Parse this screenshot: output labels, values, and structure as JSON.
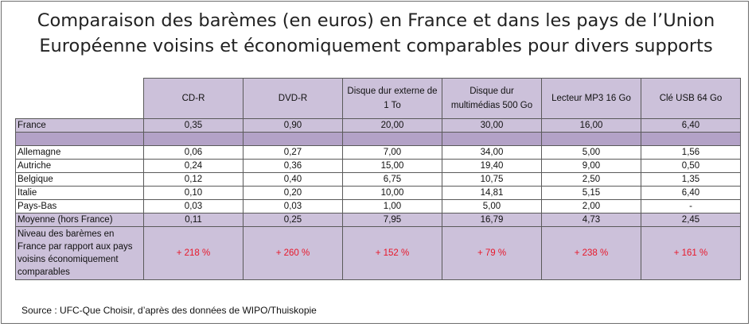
{
  "title": {
    "line1": "Comparaison des barèmes (en euros) en France et dans les pays de l’Union",
    "line2": "Européenne voisins et économiquement comparables pour divers supports"
  },
  "table": {
    "headers": [
      "CD-R",
      "DVD-R",
      "Disque dur externe de 1 To",
      "Disque dur multimédias 500 Go",
      "Lecteur MP3 16 Go",
      "Clé USB 64 Go"
    ],
    "france": {
      "label": "France",
      "values": [
        "0,35",
        "0,90",
        "20,00",
        "30,00",
        "16,00",
        "6,40"
      ]
    },
    "rows": [
      {
        "label": "Allemagne",
        "values": [
          "0,06",
          "0,27",
          "7,00",
          "34,00",
          "5,00",
          "1,56"
        ]
      },
      {
        "label": "Autriche",
        "values": [
          "0,24",
          "0,36",
          "15,00",
          "19,40",
          "9,00",
          "0,50"
        ]
      },
      {
        "label": "Belgique",
        "values": [
          "0,12",
          "0,40",
          "6,75",
          "10,75",
          "2,50",
          "1,35"
        ]
      },
      {
        "label": "Italie",
        "values": [
          "0,10",
          "0,20",
          "10,00",
          "14,81",
          "5,15",
          "6,40"
        ]
      },
      {
        "label": "Pays-Bas",
        "values": [
          "0,03",
          "0,03",
          "1,00",
          "5,00",
          "2,00",
          "-"
        ]
      }
    ],
    "average": {
      "label": "Moyenne (hors France)",
      "values": [
        "0,11",
        "0,25",
        "7,95",
        "16,79",
        "4,73",
        "2,45"
      ]
    },
    "ratio": {
      "label": "Niveau des barèmes en France par rapport aux pays voisins  économiquement comparables",
      "values": [
        "+ 218 %",
        "+ 260 %",
        "+ 152 %",
        "+ 79 %",
        "+ 238 %",
        "+ 161 %"
      ]
    }
  },
  "source": "Source : UFC-Que Choisir, d’après des données de WIPO/Thuiskopie"
}
